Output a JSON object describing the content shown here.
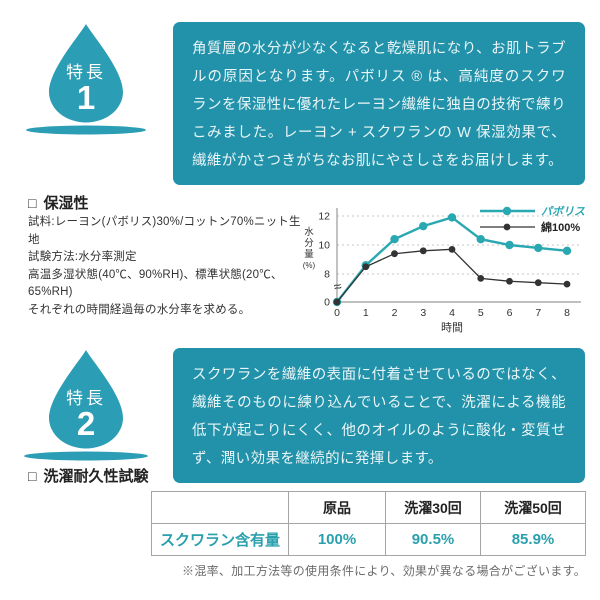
{
  "colors": {
    "box_teal": "#2192aa",
    "drop_teal": "#2b9db4",
    "chart_teal": "#2aa8b2",
    "value_teal": "#2aa0ac",
    "series2_black": "#333333"
  },
  "feature1": {
    "badge_label": "特長",
    "badge_number": "1",
    "text": "角質層の水分が少なくなると乾燥肌になり、お肌トラブルの原因となります。パボリス ® は、高純度のスクワランを保湿性に優れたレーヨン繊維に独自の技術で練りこみました。レーヨン + スクワランの W 保湿効果で、繊維がかさつきがちなお肌にやさしさをお届けします。"
  },
  "moisture_section": {
    "checkbox": "□",
    "heading": "保湿性",
    "description_lines": [
      "試料:レーヨン(パボリス)30%/コットン70%ニット生地",
      "試験方法:水分率測定",
      "高温多湿状態(40℃、90%RH)、標準状態(20℃、65%RH)",
      "それぞれの時間経過毎の水分率を求める。"
    ]
  },
  "chart_data": {
    "type": "line",
    "x": [
      0,
      1,
      2,
      3,
      4,
      5,
      6,
      7,
      8
    ],
    "series": [
      {
        "name": "パボリス",
        "color": "#2aa8b2",
        "values": [
          0,
          8.6,
          10.4,
          11.3,
          11.9,
          10.4,
          10.0,
          9.8,
          9.6
        ]
      },
      {
        "name": "綿100%",
        "color": "#333333",
        "values": [
          0,
          8.5,
          9.4,
          9.6,
          9.7,
          7.7,
          7.5,
          7.4,
          7.3
        ]
      }
    ],
    "xlabel": "時間",
    "ylabel": "水分量(%)",
    "yticks": [
      0,
      8,
      10,
      12
    ],
    "ylim": [
      0,
      12.5
    ],
    "axis_break": true,
    "grid": "horizontal-dashed",
    "legend_position": "top-right"
  },
  "feature2": {
    "badge_label": "特長",
    "badge_number": "2",
    "text": "スクワランを繊維の表面に付着させているのではなく、繊維そのものに練り込んでいることで、洗濯による機能低下が起こりにくく、他のオイルのように酸化・変質せず、潤い効果を継続的に発揮します。"
  },
  "wash_section": {
    "checkbox": "□",
    "heading": "洗濯耐久性試験"
  },
  "table": {
    "headers": [
      "",
      "原品",
      "洗濯30回",
      "洗濯50回"
    ],
    "rows": [
      {
        "label": "スクワラン含有量",
        "values": [
          "100%",
          "90.5%",
          "85.9%"
        ]
      }
    ]
  },
  "footnote": "※混率、加工方法等の使用条件により、効果が異なる場合がございます。"
}
